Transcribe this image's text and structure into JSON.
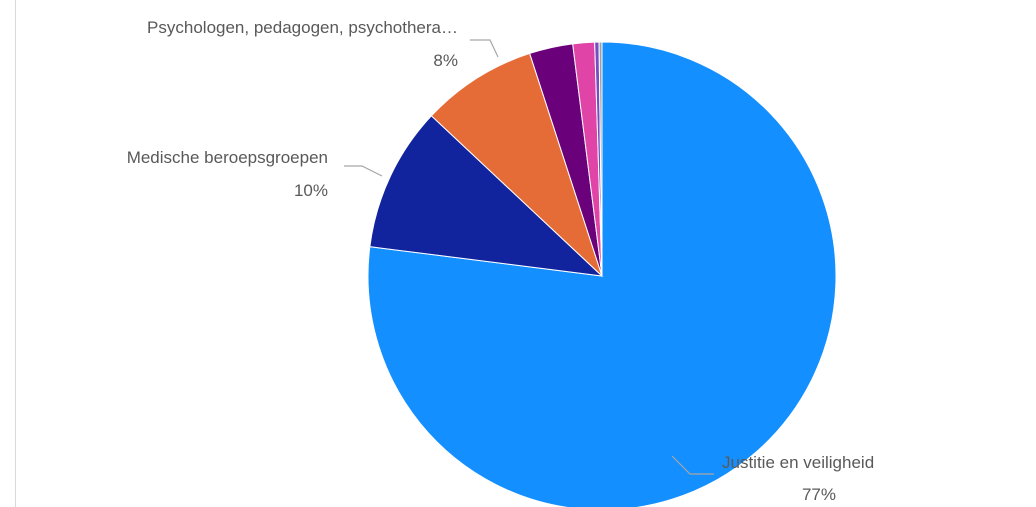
{
  "chart_data": {
    "type": "pie",
    "title": "",
    "start_angle_deg": 0,
    "direction": "clockwise",
    "legend": "none",
    "slices": [
      {
        "name": "Justitie en veiligheid",
        "value": 77,
        "label_value": "77%",
        "color": "#148fff",
        "labeled": true
      },
      {
        "name": "Medische beroepsgroepen",
        "value": 10,
        "label_value": "10%",
        "color": "#12239e",
        "labeled": true
      },
      {
        "name": "Psychologen, pedagogen, psychothera…",
        "value": 8,
        "label_value": "8%",
        "color": "#e66c37",
        "labeled": true
      },
      {
        "name": "",
        "value": 3,
        "label_value": "",
        "color": "#6b007b",
        "labeled": false
      },
      {
        "name": "",
        "value": 1.5,
        "label_value": "",
        "color": "#e044a7",
        "labeled": false
      },
      {
        "name": "",
        "value": 0.3,
        "label_value": "",
        "color": "#744ec2",
        "labeled": false
      },
      {
        "name": "",
        "value": 0.2,
        "label_value": "",
        "color": "#9aa0a6",
        "labeled": false
      }
    ]
  }
}
